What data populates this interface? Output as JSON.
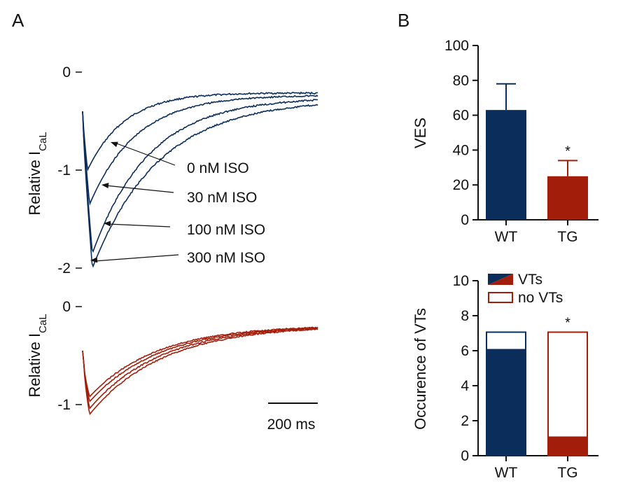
{
  "chart_data": [
    {
      "id": "A-top",
      "type": "line",
      "panel": "A",
      "ylabel": "Relative I",
      "ylabel_sub": "CaL",
      "y_ticks": [
        {
          "value": 0,
          "label": "0"
        },
        {
          "value": -1,
          "label": "-1"
        },
        {
          "value": -2,
          "label": "-2"
        }
      ],
      "ylim": [
        -2.0,
        0
      ],
      "color": "#0b2d5b",
      "series": [
        {
          "name": "0 nM ISO",
          "peak": -1.0,
          "peak_ms": 15
        },
        {
          "name": "30 nM ISO",
          "peak": -1.35,
          "peak_ms": 18
        },
        {
          "name": "100 nM ISO",
          "peak": -1.85,
          "peak_ms": 24
        },
        {
          "name": "300 nM ISO",
          "peak": -2.0,
          "peak_ms": 24
        }
      ]
    },
    {
      "id": "A-bottom",
      "type": "line",
      "panel": "A",
      "ylabel": "Relative I",
      "ylabel_sub": "CaL",
      "y_ticks": [
        {
          "value": 0,
          "label": "0"
        },
        {
          "value": -1,
          "label": "-1"
        }
      ],
      "ylim": [
        -1.1,
        0
      ],
      "color": "#a31e0a",
      "series": [
        {
          "name": "",
          "peak": -0.92
        },
        {
          "name": "",
          "peak": -0.97
        },
        {
          "name": "",
          "peak": -1.04
        },
        {
          "name": "",
          "peak": -1.1
        }
      ],
      "scale_bar": "200 ms"
    },
    {
      "id": "B-top",
      "type": "bar",
      "panel": "B",
      "categories": [
        "WT",
        "TG"
      ],
      "values": [
        63,
        25
      ],
      "errors": [
        15,
        9
      ],
      "colors": [
        "#0b2d5b",
        "#a31e0a"
      ],
      "ylabel": "VES",
      "ylim": [
        0,
        100
      ],
      "y_ticks": [
        "0",
        "20",
        "40",
        "60",
        "80",
        "100"
      ],
      "significance": [
        "",
        "*"
      ]
    },
    {
      "id": "B-bottom",
      "type": "bar",
      "panel": "B",
      "stacked": true,
      "categories": [
        "WT",
        "TG"
      ],
      "series": [
        {
          "name": "VTs",
          "values": [
            6.1,
            1.1
          ]
        },
        {
          "name": "no VTs",
          "values": [
            1.0,
            6.0
          ]
        }
      ],
      "colors": [
        "#0b2d5b",
        "#a31e0a"
      ],
      "ylabel": "Occurence of VTs",
      "ylim": [
        0,
        10
      ],
      "y_ticks": [
        "0",
        "2",
        "4",
        "6",
        "8",
        "10"
      ],
      "significance": [
        "",
        "*"
      ]
    }
  ],
  "panel_labels": [
    "A",
    "B"
  ]
}
